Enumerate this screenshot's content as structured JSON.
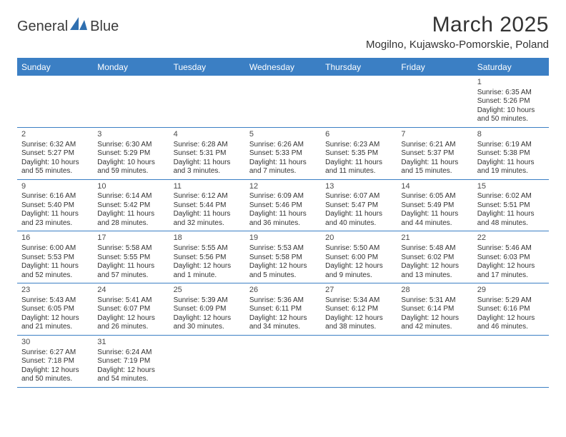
{
  "brand": {
    "name_part1": "General",
    "name_part2": "Blue"
  },
  "title": "March 2025",
  "location": "Mogilno, Kujawsko-Pomorskie, Poland",
  "colors": {
    "header_bg": "#3b7fc4",
    "header_text": "#ffffff",
    "divider": "#3b7fc4",
    "body_text": "#333333",
    "page_bg": "#ffffff",
    "logo_blue": "#2f6fb0"
  },
  "weekdays": [
    "Sunday",
    "Monday",
    "Tuesday",
    "Wednesday",
    "Thursday",
    "Friday",
    "Saturday"
  ],
  "weeks": [
    [
      null,
      null,
      null,
      null,
      null,
      null,
      {
        "n": "1",
        "sunrise": "Sunrise: 6:35 AM",
        "sunset": "Sunset: 5:26 PM",
        "day1": "Daylight: 10 hours",
        "day2": "and 50 minutes."
      }
    ],
    [
      {
        "n": "2",
        "sunrise": "Sunrise: 6:32 AM",
        "sunset": "Sunset: 5:27 PM",
        "day1": "Daylight: 10 hours",
        "day2": "and 55 minutes."
      },
      {
        "n": "3",
        "sunrise": "Sunrise: 6:30 AM",
        "sunset": "Sunset: 5:29 PM",
        "day1": "Daylight: 10 hours",
        "day2": "and 59 minutes."
      },
      {
        "n": "4",
        "sunrise": "Sunrise: 6:28 AM",
        "sunset": "Sunset: 5:31 PM",
        "day1": "Daylight: 11 hours",
        "day2": "and 3 minutes."
      },
      {
        "n": "5",
        "sunrise": "Sunrise: 6:26 AM",
        "sunset": "Sunset: 5:33 PM",
        "day1": "Daylight: 11 hours",
        "day2": "and 7 minutes."
      },
      {
        "n": "6",
        "sunrise": "Sunrise: 6:23 AM",
        "sunset": "Sunset: 5:35 PM",
        "day1": "Daylight: 11 hours",
        "day2": "and 11 minutes."
      },
      {
        "n": "7",
        "sunrise": "Sunrise: 6:21 AM",
        "sunset": "Sunset: 5:37 PM",
        "day1": "Daylight: 11 hours",
        "day2": "and 15 minutes."
      },
      {
        "n": "8",
        "sunrise": "Sunrise: 6:19 AM",
        "sunset": "Sunset: 5:38 PM",
        "day1": "Daylight: 11 hours",
        "day2": "and 19 minutes."
      }
    ],
    [
      {
        "n": "9",
        "sunrise": "Sunrise: 6:16 AM",
        "sunset": "Sunset: 5:40 PM",
        "day1": "Daylight: 11 hours",
        "day2": "and 23 minutes."
      },
      {
        "n": "10",
        "sunrise": "Sunrise: 6:14 AM",
        "sunset": "Sunset: 5:42 PM",
        "day1": "Daylight: 11 hours",
        "day2": "and 28 minutes."
      },
      {
        "n": "11",
        "sunrise": "Sunrise: 6:12 AM",
        "sunset": "Sunset: 5:44 PM",
        "day1": "Daylight: 11 hours",
        "day2": "and 32 minutes."
      },
      {
        "n": "12",
        "sunrise": "Sunrise: 6:09 AM",
        "sunset": "Sunset: 5:46 PM",
        "day1": "Daylight: 11 hours",
        "day2": "and 36 minutes."
      },
      {
        "n": "13",
        "sunrise": "Sunrise: 6:07 AM",
        "sunset": "Sunset: 5:47 PM",
        "day1": "Daylight: 11 hours",
        "day2": "and 40 minutes."
      },
      {
        "n": "14",
        "sunrise": "Sunrise: 6:05 AM",
        "sunset": "Sunset: 5:49 PM",
        "day1": "Daylight: 11 hours",
        "day2": "and 44 minutes."
      },
      {
        "n": "15",
        "sunrise": "Sunrise: 6:02 AM",
        "sunset": "Sunset: 5:51 PM",
        "day1": "Daylight: 11 hours",
        "day2": "and 48 minutes."
      }
    ],
    [
      {
        "n": "16",
        "sunrise": "Sunrise: 6:00 AM",
        "sunset": "Sunset: 5:53 PM",
        "day1": "Daylight: 11 hours",
        "day2": "and 52 minutes."
      },
      {
        "n": "17",
        "sunrise": "Sunrise: 5:58 AM",
        "sunset": "Sunset: 5:55 PM",
        "day1": "Daylight: 11 hours",
        "day2": "and 57 minutes."
      },
      {
        "n": "18",
        "sunrise": "Sunrise: 5:55 AM",
        "sunset": "Sunset: 5:56 PM",
        "day1": "Daylight: 12 hours",
        "day2": "and 1 minute."
      },
      {
        "n": "19",
        "sunrise": "Sunrise: 5:53 AM",
        "sunset": "Sunset: 5:58 PM",
        "day1": "Daylight: 12 hours",
        "day2": "and 5 minutes."
      },
      {
        "n": "20",
        "sunrise": "Sunrise: 5:50 AM",
        "sunset": "Sunset: 6:00 PM",
        "day1": "Daylight: 12 hours",
        "day2": "and 9 minutes."
      },
      {
        "n": "21",
        "sunrise": "Sunrise: 5:48 AM",
        "sunset": "Sunset: 6:02 PM",
        "day1": "Daylight: 12 hours",
        "day2": "and 13 minutes."
      },
      {
        "n": "22",
        "sunrise": "Sunrise: 5:46 AM",
        "sunset": "Sunset: 6:03 PM",
        "day1": "Daylight: 12 hours",
        "day2": "and 17 minutes."
      }
    ],
    [
      {
        "n": "23",
        "sunrise": "Sunrise: 5:43 AM",
        "sunset": "Sunset: 6:05 PM",
        "day1": "Daylight: 12 hours",
        "day2": "and 21 minutes."
      },
      {
        "n": "24",
        "sunrise": "Sunrise: 5:41 AM",
        "sunset": "Sunset: 6:07 PM",
        "day1": "Daylight: 12 hours",
        "day2": "and 26 minutes."
      },
      {
        "n": "25",
        "sunrise": "Sunrise: 5:39 AM",
        "sunset": "Sunset: 6:09 PM",
        "day1": "Daylight: 12 hours",
        "day2": "and 30 minutes."
      },
      {
        "n": "26",
        "sunrise": "Sunrise: 5:36 AM",
        "sunset": "Sunset: 6:11 PM",
        "day1": "Daylight: 12 hours",
        "day2": "and 34 minutes."
      },
      {
        "n": "27",
        "sunrise": "Sunrise: 5:34 AM",
        "sunset": "Sunset: 6:12 PM",
        "day1": "Daylight: 12 hours",
        "day2": "and 38 minutes."
      },
      {
        "n": "28",
        "sunrise": "Sunrise: 5:31 AM",
        "sunset": "Sunset: 6:14 PM",
        "day1": "Daylight: 12 hours",
        "day2": "and 42 minutes."
      },
      {
        "n": "29",
        "sunrise": "Sunrise: 5:29 AM",
        "sunset": "Sunset: 6:16 PM",
        "day1": "Daylight: 12 hours",
        "day2": "and 46 minutes."
      }
    ],
    [
      {
        "n": "30",
        "sunrise": "Sunrise: 6:27 AM",
        "sunset": "Sunset: 7:18 PM",
        "day1": "Daylight: 12 hours",
        "day2": "and 50 minutes."
      },
      {
        "n": "31",
        "sunrise": "Sunrise: 6:24 AM",
        "sunset": "Sunset: 7:19 PM",
        "day1": "Daylight: 12 hours",
        "day2": "and 54 minutes."
      },
      null,
      null,
      null,
      null,
      null
    ]
  ]
}
